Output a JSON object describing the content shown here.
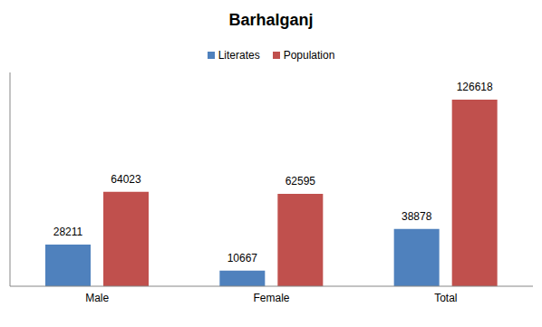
{
  "chart_data": {
    "type": "bar",
    "title": "Barhalganj",
    "categories": [
      "Male",
      "Female",
      "Total"
    ],
    "series": [
      {
        "name": "Literates",
        "color": "#4f81bd",
        "values": [
          28211,
          10667,
          38878
        ]
      },
      {
        "name": "Population",
        "color": "#c0504d",
        "values": [
          64023,
          62595,
          126618
        ]
      }
    ],
    "ylim": [
      0,
      145000
    ],
    "legend": "top",
    "data_labels": true,
    "tick_labels": "x",
    "grid": false
  }
}
